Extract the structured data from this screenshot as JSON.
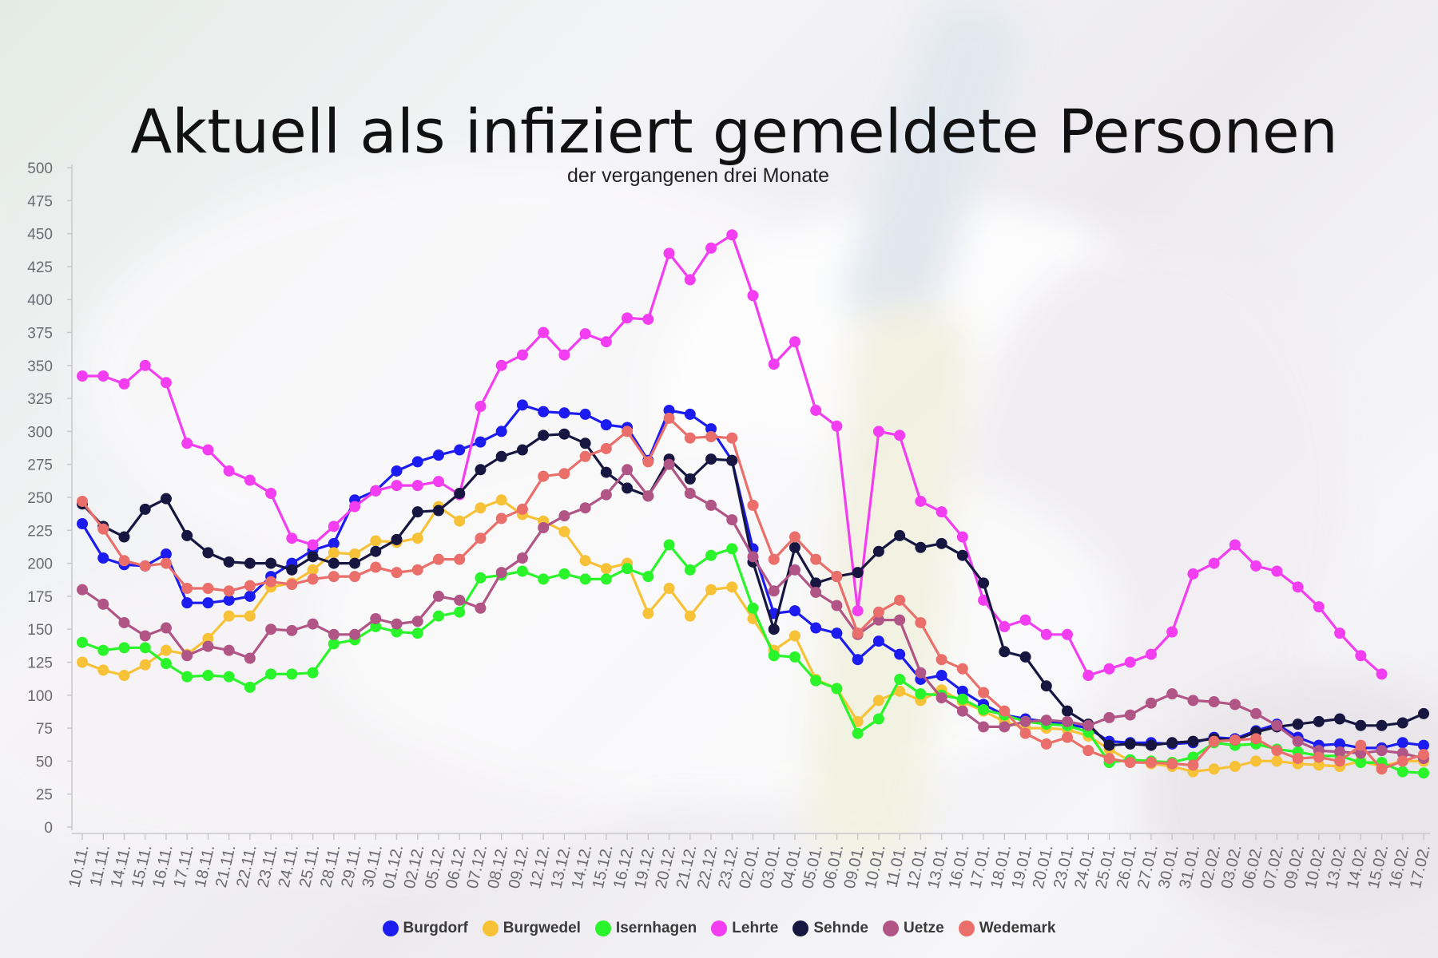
{
  "chart_data": {
    "type": "line",
    "title": "Aktuell als infiziert gemeldete Personen",
    "subtitle": "der vergangenen drei Monate",
    "xlabel": "",
    "ylabel": "",
    "ylim": [
      0,
      500
    ],
    "yticks": [
      0,
      25,
      50,
      75,
      100,
      125,
      150,
      175,
      200,
      225,
      250,
      275,
      300,
      325,
      350,
      375,
      400,
      425,
      450,
      475,
      500
    ],
    "grid": false,
    "legend_position": "bottom",
    "categories": [
      "10.11.",
      "11.11.",
      "14.11.",
      "15.11.",
      "16.11.",
      "17.11.",
      "18.11.",
      "21.11.",
      "22.11.",
      "23.11.",
      "24.11.",
      "25.11.",
      "28.11.",
      "29.11.",
      "30.11.",
      "01.12.",
      "02.12.",
      "05.12.",
      "06.12.",
      "07.12.",
      "08.12.",
      "09.12.",
      "12.12.",
      "13.12.",
      "14.12.",
      "15.12.",
      "16.12.",
      "19.12.",
      "20.12.",
      "21.12.",
      "22.12.",
      "23.12.",
      "02.01.",
      "03.01.",
      "04.01.",
      "05.01.",
      "06.01.",
      "09.01.",
      "10.01.",
      "11.01.",
      "12.01.",
      "13.01.",
      "16.01.",
      "17.01.",
      "18.01.",
      "19.01.",
      "20.01.",
      "23.01.",
      "24.01.",
      "25.01.",
      "26.01.",
      "27.01.",
      "30.01.",
      "31.01.",
      "02.02.",
      "03.02.",
      "06.02.",
      "07.02.",
      "09.02.",
      "10.02.",
      "13.02.",
      "14.02.",
      "15.02.",
      "16.02.",
      "17.02."
    ],
    "series": [
      {
        "name": "Burgdorf",
        "color": "#1c1cf0",
        "values": [
          230,
          204,
          199,
          198,
          207,
          170,
          170,
          172,
          175,
          190,
          200,
          210,
          215,
          248,
          255,
          270,
          277,
          282,
          286,
          292,
          300,
          320,
          315,
          314,
          313,
          305,
          303,
          278,
          316,
          313,
          302,
          278,
          211,
          162,
          164,
          151,
          147,
          127,
          141,
          131,
          112,
          115,
          103,
          93,
          85,
          82,
          80,
          78,
          75,
          65,
          64,
          64,
          63,
          64,
          68,
          67,
          73,
          78,
          68,
          62,
          63,
          60,
          60,
          64,
          62
        ]
      },
      {
        "name": "Burgwedel",
        "color": "#f7c238",
        "values": [
          125,
          119,
          115,
          123,
          134,
          131,
          143,
          160,
          160,
          182,
          185,
          195,
          208,
          207,
          217,
          216,
          219,
          243,
          232,
          242,
          248,
          237,
          232,
          224,
          202,
          196,
          200,
          162,
          181,
          160,
          180,
          182,
          158,
          134,
          145,
          112,
          105,
          80,
          96,
          103,
          96,
          104,
          95,
          88,
          80,
          75,
          75,
          74,
          69,
          59,
          50,
          48,
          46,
          42,
          44,
          46,
          50,
          50,
          48,
          47,
          46,
          50,
          46,
          50,
          50
        ]
      },
      {
        "name": "Isernhagen",
        "color": "#2af52a",
        "values": [
          140,
          134,
          136,
          136,
          124,
          114,
          115,
          114,
          106,
          116,
          116,
          117,
          139,
          142,
          152,
          148,
          147,
          160,
          163,
          189,
          191,
          194,
          188,
          192,
          188,
          188,
          196,
          190,
          214,
          195,
          206,
          211,
          166,
          130,
          129,
          111,
          105,
          71,
          82,
          112,
          101,
          100,
          97,
          89,
          85,
          80,
          78,
          77,
          72,
          49,
          51,
          50,
          49,
          53,
          64,
          62,
          63,
          59,
          57,
          54,
          54,
          49,
          49,
          42,
          41
        ]
      },
      {
        "name": "Lehrte",
        "color": "#f23df0",
        "values": [
          342,
          342,
          336,
          350,
          337,
          291,
          286,
          270,
          263,
          253,
          219,
          214,
          228,
          243,
          255,
          259,
          259,
          262,
          252,
          319,
          350,
          358,
          375,
          358,
          374,
          368,
          386,
          385,
          435,
          415,
          439,
          449,
          403,
          351,
          368,
          316,
          304,
          164,
          300,
          297,
          247,
          239,
          220,
          172,
          152,
          157,
          146,
          146,
          115,
          120,
          125,
          131,
          148,
          192,
          200,
          214,
          198,
          194,
          182,
          167,
          147,
          130,
          116,
          null,
          null
        ]
      },
      {
        "name": "Sehnde",
        "color": "#161640",
        "values": [
          245,
          228,
          220,
          241,
          249,
          221,
          208,
          201,
          200,
          200,
          195,
          205,
          200,
          200,
          209,
          218,
          239,
          240,
          253,
          271,
          281,
          286,
          297,
          298,
          291,
          269,
          257,
          251,
          279,
          264,
          279,
          278,
          201,
          150,
          212,
          185,
          190,
          193,
          209,
          221,
          212,
          215,
          206,
          185,
          133,
          129,
          107,
          88,
          78,
          62,
          63,
          62,
          64,
          65,
          67,
          66,
          72,
          76,
          78,
          80,
          82,
          77,
          77,
          79,
          86
        ]
      },
      {
        "name": "Uetze",
        "color": "#b05586",
        "values": [
          180,
          169,
          155,
          145,
          151,
          130,
          137,
          134,
          128,
          150,
          149,
          154,
          146,
          146,
          158,
          154,
          156,
          175,
          172,
          166,
          193,
          204,
          227,
          236,
          242,
          252,
          271,
          251,
          275,
          253,
          244,
          233,
          205,
          179,
          195,
          178,
          168,
          146,
          157,
          157,
          117,
          98,
          88,
          76,
          76,
          80,
          81,
          80,
          77,
          83,
          85,
          94,
          101,
          96,
          95,
          93,
          86,
          77,
          65,
          58,
          57,
          56,
          58,
          56,
          52
        ]
      },
      {
        "name": "Wedemark",
        "color": "#ea6f6a",
        "values": [
          247,
          226,
          202,
          198,
          200,
          181,
          181,
          179,
          183,
          186,
          184,
          188,
          190,
          190,
          197,
          193,
          195,
          203,
          203,
          219,
          234,
          241,
          266,
          268,
          281,
          287,
          300,
          277,
          310,
          295,
          296,
          295,
          244,
          203,
          220,
          203,
          190,
          147,
          163,
          172,
          155,
          127,
          120,
          102,
          88,
          71,
          63,
          68,
          58,
          52,
          49,
          49,
          48,
          47,
          65,
          66,
          67,
          58,
          52,
          53,
          50,
          62,
          44,
          50,
          55
        ]
      }
    ]
  }
}
